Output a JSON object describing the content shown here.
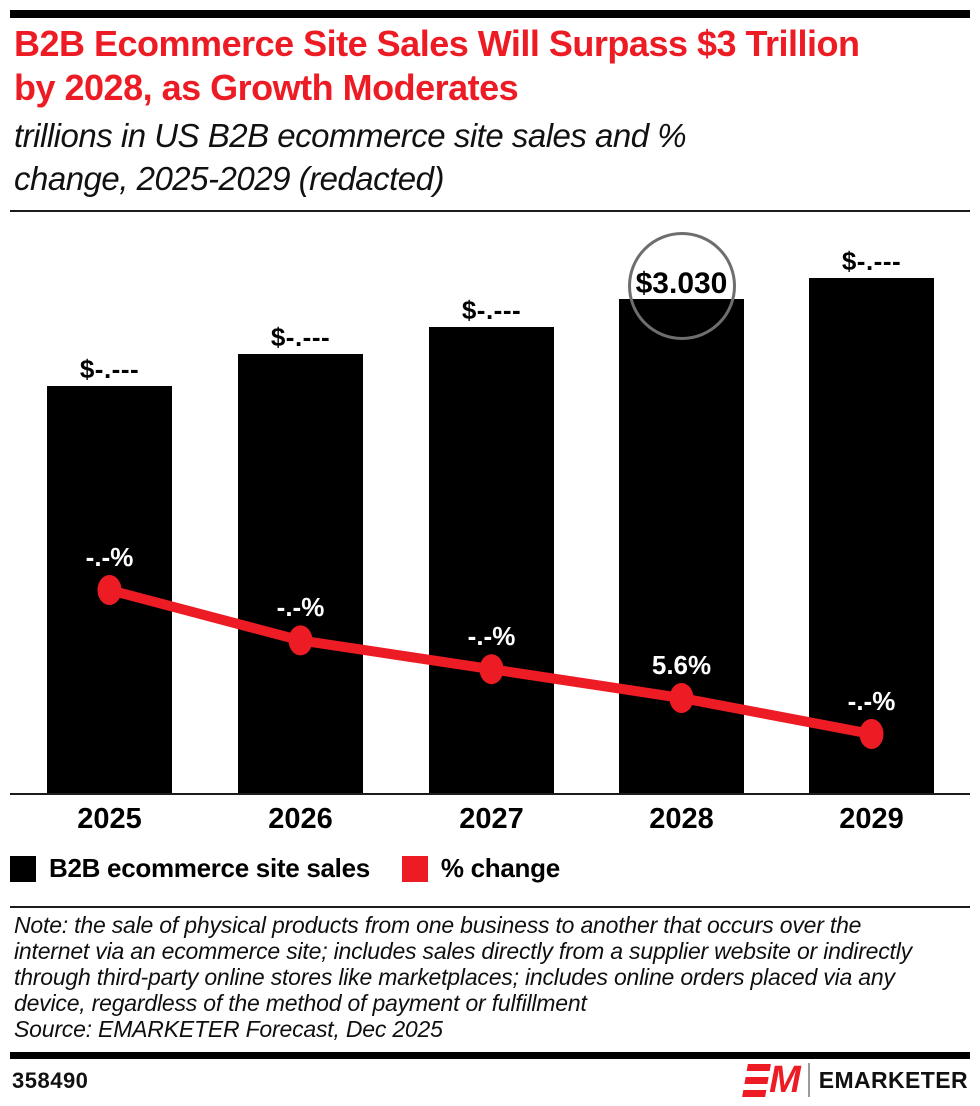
{
  "page": {
    "background": "#ffffff",
    "accent_red": "#ed1c24"
  },
  "header": {
    "title_lines": [
      "B2B Ecommerce Site Sales Will Surpass $3 Trillion",
      "by 2028, as Growth Moderates"
    ],
    "subtitle_lines": [
      "trillions in US B2B ecommerce site sales and %",
      "change, 2025-2029 (redacted)"
    ]
  },
  "chart_data": {
    "type": "bar",
    "subtype": "bar+line combo",
    "categories": [
      "2025",
      "2026",
      "2027",
      "2028",
      "2029"
    ],
    "series": [
      {
        "name": "B2B ecommerce site sales",
        "type": "bar",
        "color": "#000000",
        "unit": "trillions of US dollars",
        "values_est": [
          2.5,
          2.69,
          2.86,
          3.03,
          3.16
        ],
        "labels": [
          "$-.---",
          "$-.---",
          "$-.---",
          "$3.030",
          "$-.---"
        ]
      },
      {
        "name": "% change",
        "type": "line",
        "color": "#ed1c24",
        "unit": "percent",
        "values_est": [
          8.6,
          7.2,
          6.4,
          5.6,
          4.6
        ],
        "labels": [
          "-.-%",
          "-.-%",
          "-.-%",
          "5.6%",
          "-.-%"
        ]
      }
    ],
    "highlight": {
      "category": "2028",
      "bar_label": "$3.030",
      "annotation": "gray circle around 2028 bar value label",
      "circle_color": "#6e6e6e"
    },
    "value_axis": "hidden",
    "grid": "off",
    "legend_position": "bottom-left",
    "note": "all values except 2028 are redacted as $-.--- and -.-%"
  },
  "legend": {
    "items": [
      {
        "label": "B2B ecommerce site sales",
        "color": "#000000"
      },
      {
        "label": "% change",
        "color": "#ed1c24"
      }
    ]
  },
  "note": {
    "lines": [
      "Note: the sale of physical products from one business to another that occurs over the",
      "internet via an ecommerce site; includes sales directly from a supplier website or indirectly",
      "through third-party online stores like marketplaces; includes online orders placed via any",
      "device, regardless of the method of payment or fulfillment"
    ],
    "source": "Source: EMARKETER Forecast, Dec 2025"
  },
  "footer": {
    "chart_id": "358490",
    "brand": "EMARKETER"
  }
}
